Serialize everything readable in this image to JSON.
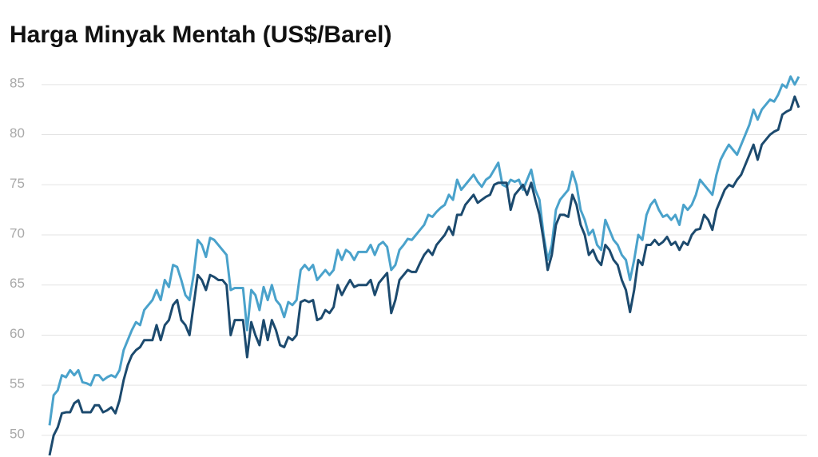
{
  "chart_data": {
    "type": "line",
    "title": "Harga Minyak Mentah (US$/Barel)",
    "ylim": [
      48,
      86.5
    ],
    "yticks": [
      50,
      55,
      60,
      65,
      70,
      75,
      80,
      85
    ],
    "grid": true,
    "series": [
      {
        "color": "#4aa2cb",
        "values": [
          51,
          54,
          54.5,
          56,
          55.8,
          56.5,
          56,
          56.5,
          55.3,
          55.2,
          55,
          56,
          56,
          55.5,
          55.8,
          56,
          55.8,
          56.5,
          58.5,
          59.5,
          60.5,
          61.3,
          61,
          62.5,
          63,
          63.5,
          64.5,
          63.5,
          65.5,
          64.8,
          67,
          66.8,
          65.5,
          64,
          63.5,
          66,
          69.5,
          69,
          67.8,
          69.7,
          69.5,
          69,
          68.5,
          68,
          64.5,
          64.7,
          64.7,
          64.7,
          60.5,
          64.5,
          64,
          62.5,
          64.8,
          63.5,
          65,
          63.5,
          63,
          61.8,
          63.3,
          63,
          63.5,
          66.5,
          67,
          66.5,
          67,
          65.5,
          66,
          66.5,
          66,
          66.5,
          68.5,
          67.5,
          68.5,
          68.2,
          67.5,
          68.3,
          68.3,
          68.3,
          69,
          68,
          69,
          69.3,
          68.8,
          66.5,
          67,
          68.5,
          69,
          69.6,
          69.5,
          70,
          70.5,
          71,
          72,
          71.8,
          72.3,
          72.7,
          73,
          74,
          73.5,
          75.5,
          74.5,
          75,
          75.5,
          76,
          75.3,
          74.8,
          75.5,
          75.8,
          76.5,
          77.2,
          75,
          74.8,
          75.5,
          75.3,
          75.5,
          74.5,
          75.5,
          76.5,
          74.5,
          73.5,
          70,
          67.5,
          69,
          72.5,
          73.5,
          74,
          74.5,
          76.3,
          75,
          72.5,
          71.5,
          70,
          70.5,
          69,
          68.5,
          71.5,
          70.5,
          69.5,
          69,
          68,
          67.5,
          65.5,
          67.5,
          70,
          69.5,
          72,
          73,
          73.5,
          72.5,
          71.8,
          72,
          71.5,
          72,
          71,
          73,
          72.5,
          73,
          74,
          75.5,
          75,
          74.5,
          74,
          76,
          77.5,
          78.3,
          79,
          78.5,
          78,
          79,
          80,
          81,
          82.5,
          81.5,
          82.5,
          83,
          83.5,
          83.3,
          84,
          85,
          84.7,
          85.8,
          85,
          85.8
        ]
      },
      {
        "color": "#1c4a6e",
        "values": [
          48,
          50,
          50.8,
          52.2,
          52.3,
          52.3,
          53.2,
          53.5,
          52.3,
          52.3,
          52.3,
          53,
          53,
          52.3,
          52.5,
          52.8,
          52.2,
          53.5,
          55.5,
          57,
          58,
          58.5,
          58.8,
          59.5,
          59.5,
          59.5,
          61,
          59.5,
          61,
          61.5,
          63,
          63.5,
          61.5,
          61,
          60,
          63,
          66,
          65.5,
          64.5,
          66,
          65.8,
          65.5,
          65.5,
          65,
          60,
          61.5,
          61.5,
          61.5,
          57.8,
          61.3,
          60,
          59,
          61.5,
          59.5,
          61.5,
          60.5,
          59,
          58.8,
          59.8,
          59.5,
          60,
          63.3,
          63.5,
          63.3,
          63.5,
          61.5,
          61.7,
          62.5,
          62.2,
          62.8,
          65,
          64,
          64.8,
          65.5,
          64.8,
          65,
          65,
          65,
          65.5,
          64,
          65.2,
          65.7,
          66.2,
          62.2,
          63.5,
          65.5,
          66,
          66.5,
          66.3,
          66.3,
          67.2,
          68,
          68.5,
          68,
          69,
          69.5,
          70,
          70.8,
          70,
          72,
          72,
          73,
          73.5,
          74,
          73.2,
          73.5,
          73.8,
          74,
          75,
          75.2,
          75.2,
          75.2,
          72.5,
          74,
          74.5,
          75,
          74,
          75.2,
          73.5,
          72,
          69.5,
          66.5,
          68,
          71,
          72,
          72,
          71.8,
          74,
          73,
          71,
          70,
          68,
          68.5,
          67.5,
          67,
          69,
          68.5,
          67.5,
          67,
          65.5,
          64.5,
          62.3,
          64.5,
          67.5,
          67,
          69,
          69,
          69.5,
          69,
          69.3,
          69.8,
          69,
          69.3,
          68.5,
          69.3,
          69,
          70,
          70.5,
          70.6,
          72,
          71.5,
          70.5,
          72.5,
          73.5,
          74.5,
          75,
          74.8,
          75.5,
          76,
          77,
          78,
          79,
          77.5,
          79,
          79.5,
          80,
          80.3,
          80.5,
          82,
          82.3,
          82.5,
          83.8,
          82.7
        ]
      }
    ]
  }
}
